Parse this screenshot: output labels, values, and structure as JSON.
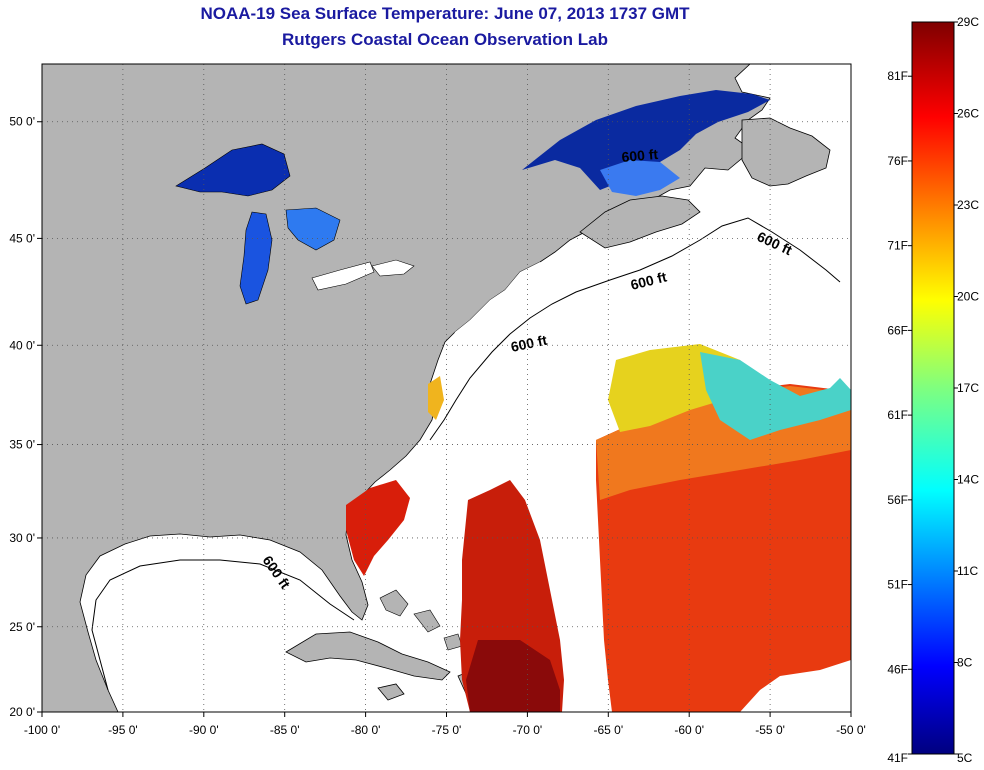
{
  "title": "NOAA-19 Sea Surface Temperature:  June 07, 2013 1737 GMT",
  "subtitle": "Rutgers Coastal Ocean Observation Lab",
  "lat_labels": [
    "50 0'",
    "45 0'",
    "40 0'",
    "35 0'",
    "30 0'",
    "25 0'",
    "20 0'"
  ],
  "lon_labels": [
    "-100 0'",
    "-95 0'",
    "-90 0'",
    "-85 0'",
    "-80 0'",
    "-75 0'",
    "-70 0'",
    "-65 0'",
    "-60 0'",
    "-55 0'",
    "-50 0'"
  ],
  "contour_label": "600 ft",
  "colorbar": {
    "celsius": [
      "29C",
      "26C",
      "23C",
      "20C",
      "17C",
      "14C",
      "11C",
      "8C",
      "5C"
    ],
    "fahrenheit": [
      "81F",
      "76F",
      "71F",
      "66F",
      "61F",
      "56F",
      "51F",
      "46F",
      "41F"
    ]
  },
  "colors": {
    "land": "#b4b4b4",
    "ocean_nodata": "#ffffff",
    "title": "#1a1aa0"
  }
}
